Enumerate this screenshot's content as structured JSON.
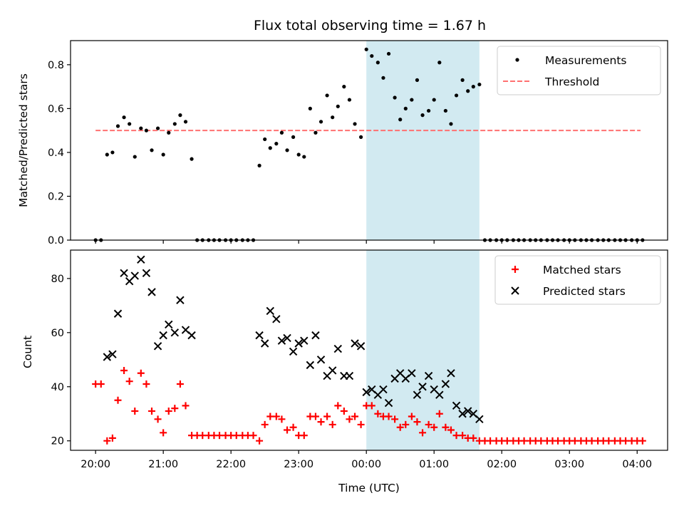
{
  "title": "Flux total observing time = 1.67 h",
  "xlabel": "Time (UTC)",
  "colors": {
    "measurement": "#000000",
    "threshold": "#ff7070",
    "matched": "#ff0000",
    "predicted": "#000000",
    "shade": "#add8e6"
  },
  "chart_data": [
    {
      "type": "scatter",
      "ylabel": "Matched/Predicted stars",
      "ylim": [
        0,
        0.91
      ],
      "xlim": [
        19.63,
        28.45
      ],
      "yticks": [
        0.0,
        0.2,
        0.4,
        0.6,
        0.8
      ],
      "ytick_labels": [
        "0.0",
        "0.2",
        "0.4",
        "0.6",
        "0.8"
      ],
      "shaded_range": [
        24.0,
        25.67
      ],
      "legend": {
        "position": "top-right",
        "entries": [
          "Measurements",
          "Threshold"
        ]
      },
      "threshold": {
        "name": "Threshold",
        "value": 0.5,
        "x_range": [
          20.0,
          28.05
        ]
      },
      "series": [
        {
          "name": "Measurements",
          "marker": "dot",
          "points": [
            [
              20.0,
              0.0
            ],
            [
              20.08,
              0.0
            ],
            [
              20.17,
              0.39
            ],
            [
              20.25,
              0.4
            ],
            [
              20.33,
              0.52
            ],
            [
              20.42,
              0.56
            ],
            [
              20.5,
              0.53
            ],
            [
              20.58,
              0.38
            ],
            [
              20.67,
              0.51
            ],
            [
              20.75,
              0.5
            ],
            [
              20.83,
              0.41
            ],
            [
              20.92,
              0.51
            ],
            [
              21.0,
              0.39
            ],
            [
              21.08,
              0.49
            ],
            [
              21.17,
              0.53
            ],
            [
              21.25,
              0.57
            ],
            [
              21.33,
              0.54
            ],
            [
              21.42,
              0.37
            ],
            [
              21.5,
              0.0
            ],
            [
              21.58,
              0.0
            ],
            [
              21.67,
              0.0
            ],
            [
              21.75,
              0.0
            ],
            [
              21.83,
              0.0
            ],
            [
              21.92,
              0.0
            ],
            [
              22.0,
              0.0
            ],
            [
              22.08,
              0.0
            ],
            [
              22.17,
              0.0
            ],
            [
              22.25,
              0.0
            ],
            [
              22.33,
              0.0
            ],
            [
              22.42,
              0.34
            ],
            [
              22.5,
              0.46
            ],
            [
              22.58,
              0.42
            ],
            [
              22.67,
              0.44
            ],
            [
              22.75,
              0.49
            ],
            [
              22.83,
              0.41
            ],
            [
              22.92,
              0.47
            ],
            [
              23.0,
              0.39
            ],
            [
              23.08,
              0.38
            ],
            [
              23.17,
              0.6
            ],
            [
              23.25,
              0.49
            ],
            [
              23.33,
              0.54
            ],
            [
              23.42,
              0.66
            ],
            [
              23.5,
              0.56
            ],
            [
              23.58,
              0.61
            ],
            [
              23.67,
              0.7
            ],
            [
              23.75,
              0.64
            ],
            [
              23.83,
              0.53
            ],
            [
              23.92,
              0.47
            ],
            [
              24.0,
              0.87
            ],
            [
              24.08,
              0.84
            ],
            [
              24.17,
              0.81
            ],
            [
              24.25,
              0.74
            ],
            [
              24.33,
              0.85
            ],
            [
              24.42,
              0.65
            ],
            [
              24.5,
              0.55
            ],
            [
              24.58,
              0.6
            ],
            [
              24.67,
              0.64
            ],
            [
              24.75,
              0.73
            ],
            [
              24.83,
              0.57
            ],
            [
              24.92,
              0.59
            ],
            [
              25.0,
              0.64
            ],
            [
              25.08,
              0.81
            ],
            [
              25.17,
              0.59
            ],
            [
              25.25,
              0.53
            ],
            [
              25.33,
              0.66
            ],
            [
              25.42,
              0.73
            ],
            [
              25.5,
              0.68
            ],
            [
              25.58,
              0.7
            ],
            [
              25.67,
              0.71
            ],
            [
              25.75,
              0.0
            ],
            [
              25.83,
              0.0
            ],
            [
              25.92,
              0.0
            ],
            [
              26.0,
              0.0
            ],
            [
              26.08,
              0.0
            ],
            [
              26.17,
              0.0
            ],
            [
              26.25,
              0.0
            ],
            [
              26.33,
              0.0
            ],
            [
              26.42,
              0.0
            ],
            [
              26.5,
              0.0
            ],
            [
              26.58,
              0.0
            ],
            [
              26.67,
              0.0
            ],
            [
              26.75,
              0.0
            ],
            [
              26.83,
              0.0
            ],
            [
              26.92,
              0.0
            ],
            [
              27.0,
              0.0
            ],
            [
              27.08,
              0.0
            ],
            [
              27.17,
              0.0
            ],
            [
              27.25,
              0.0
            ],
            [
              27.33,
              0.0
            ],
            [
              27.42,
              0.0
            ],
            [
              27.5,
              0.0
            ],
            [
              27.58,
              0.0
            ],
            [
              27.67,
              0.0
            ],
            [
              27.75,
              0.0
            ],
            [
              27.83,
              0.0
            ],
            [
              27.92,
              0.0
            ],
            [
              28.0,
              0.0
            ],
            [
              28.08,
              0.0
            ]
          ]
        }
      ]
    },
    {
      "type": "scatter",
      "ylabel": "Count",
      "ylim": [
        16.5,
        90.5
      ],
      "xlim": [
        19.63,
        28.45
      ],
      "yticks": [
        20,
        40,
        60,
        80
      ],
      "ytick_labels": [
        "20",
        "40",
        "60",
        "80"
      ],
      "xticks": [
        20,
        21,
        22,
        23,
        24,
        25,
        26,
        27,
        28
      ],
      "xtick_labels": [
        "20:00",
        "21:00",
        "22:00",
        "23:00",
        "00:00",
        "01:00",
        "02:00",
        "03:00",
        "04:00"
      ],
      "shaded_range": [
        24.0,
        25.67
      ],
      "legend": {
        "position": "top-right",
        "entries": [
          "Matched stars",
          "Predicted stars"
        ]
      },
      "series": [
        {
          "name": "Matched stars",
          "marker": "plus",
          "points": [
            [
              20.0,
              41
            ],
            [
              20.08,
              41
            ],
            [
              20.17,
              20
            ],
            [
              20.25,
              21
            ],
            [
              20.33,
              35
            ],
            [
              20.42,
              46
            ],
            [
              20.5,
              42
            ],
            [
              20.58,
              31
            ],
            [
              20.67,
              45
            ],
            [
              20.75,
              41
            ],
            [
              20.83,
              31
            ],
            [
              20.92,
              28
            ],
            [
              21.0,
              23
            ],
            [
              21.08,
              31
            ],
            [
              21.17,
              32
            ],
            [
              21.25,
              41
            ],
            [
              21.33,
              33
            ],
            [
              21.42,
              22
            ],
            [
              21.5,
              22
            ],
            [
              21.58,
              22
            ],
            [
              21.67,
              22
            ],
            [
              21.75,
              22
            ],
            [
              21.83,
              22
            ],
            [
              21.92,
              22
            ],
            [
              22.0,
              22
            ],
            [
              22.08,
              22
            ],
            [
              22.17,
              22
            ],
            [
              22.25,
              22
            ],
            [
              22.33,
              22
            ],
            [
              22.42,
              20
            ],
            [
              22.5,
              26
            ],
            [
              22.58,
              29
            ],
            [
              22.67,
              29
            ],
            [
              22.75,
              28
            ],
            [
              22.83,
              24
            ],
            [
              22.92,
              25
            ],
            [
              23.0,
              22
            ],
            [
              23.08,
              22
            ],
            [
              23.17,
              29
            ],
            [
              23.25,
              29
            ],
            [
              23.33,
              27
            ],
            [
              23.42,
              29
            ],
            [
              23.5,
              26
            ],
            [
              23.58,
              33
            ],
            [
              23.67,
              31
            ],
            [
              23.75,
              28
            ],
            [
              23.83,
              29
            ],
            [
              23.92,
              26
            ],
            [
              24.0,
              33
            ],
            [
              24.08,
              33
            ],
            [
              24.17,
              30
            ],
            [
              24.25,
              29
            ],
            [
              24.33,
              29
            ],
            [
              24.42,
              28
            ],
            [
              24.5,
              25
            ],
            [
              24.58,
              26
            ],
            [
              24.67,
              29
            ],
            [
              24.75,
              27
            ],
            [
              24.83,
              23
            ],
            [
              24.92,
              26
            ],
            [
              25.0,
              25
            ],
            [
              25.08,
              30
            ],
            [
              25.17,
              25
            ],
            [
              25.25,
              24
            ],
            [
              25.33,
              22
            ],
            [
              25.42,
              22
            ],
            [
              25.5,
              21
            ],
            [
              25.58,
              21
            ],
            [
              25.67,
              20
            ],
            [
              25.75,
              20
            ],
            [
              25.83,
              20
            ],
            [
              25.92,
              20
            ],
            [
              26.0,
              20
            ],
            [
              26.08,
              20
            ],
            [
              26.17,
              20
            ],
            [
              26.25,
              20
            ],
            [
              26.33,
              20
            ],
            [
              26.42,
              20
            ],
            [
              26.5,
              20
            ],
            [
              26.58,
              20
            ],
            [
              26.67,
              20
            ],
            [
              26.75,
              20
            ],
            [
              26.83,
              20
            ],
            [
              26.92,
              20
            ],
            [
              27.0,
              20
            ],
            [
              27.08,
              20
            ],
            [
              27.17,
              20
            ],
            [
              27.25,
              20
            ],
            [
              27.33,
              20
            ],
            [
              27.42,
              20
            ],
            [
              27.5,
              20
            ],
            [
              27.58,
              20
            ],
            [
              27.67,
              20
            ],
            [
              27.75,
              20
            ],
            [
              27.83,
              20
            ],
            [
              27.92,
              20
            ],
            [
              28.0,
              20
            ],
            [
              28.08,
              20
            ]
          ]
        },
        {
          "name": "Predicted stars",
          "marker": "x",
          "points": [
            [
              20.17,
              51
            ],
            [
              20.25,
              52
            ],
            [
              20.33,
              67
            ],
            [
              20.42,
              82
            ],
            [
              20.5,
              79
            ],
            [
              20.58,
              81
            ],
            [
              20.67,
              87
            ],
            [
              20.75,
              82
            ],
            [
              20.83,
              75
            ],
            [
              20.92,
              55
            ],
            [
              21.0,
              59
            ],
            [
              21.08,
              63
            ],
            [
              21.17,
              60
            ],
            [
              21.25,
              72
            ],
            [
              21.33,
              61
            ],
            [
              21.42,
              59
            ],
            [
              22.42,
              59
            ],
            [
              22.5,
              56
            ],
            [
              22.58,
              68
            ],
            [
              22.67,
              65
            ],
            [
              22.75,
              57
            ],
            [
              22.83,
              58
            ],
            [
              22.92,
              53
            ],
            [
              23.0,
              56
            ],
            [
              23.08,
              57
            ],
            [
              23.17,
              48
            ],
            [
              23.25,
              59
            ],
            [
              23.33,
              50
            ],
            [
              23.42,
              44
            ],
            [
              23.5,
              46
            ],
            [
              23.58,
              54
            ],
            [
              23.67,
              44
            ],
            [
              23.75,
              44
            ],
            [
              23.83,
              56
            ],
            [
              23.92,
              55
            ],
            [
              24.0,
              38
            ],
            [
              24.08,
              39
            ],
            [
              24.17,
              37
            ],
            [
              24.25,
              39
            ],
            [
              24.33,
              34
            ],
            [
              24.42,
              43
            ],
            [
              24.5,
              45
            ],
            [
              24.58,
              43
            ],
            [
              24.67,
              45
            ],
            [
              24.75,
              37
            ],
            [
              24.83,
              40
            ],
            [
              24.92,
              44
            ],
            [
              25.0,
              39
            ],
            [
              25.08,
              37
            ],
            [
              25.17,
              41
            ],
            [
              25.25,
              45
            ],
            [
              25.33,
              33
            ],
            [
              25.42,
              30
            ],
            [
              25.5,
              31
            ],
            [
              25.58,
              30
            ],
            [
              25.67,
              28
            ]
          ]
        }
      ]
    }
  ]
}
